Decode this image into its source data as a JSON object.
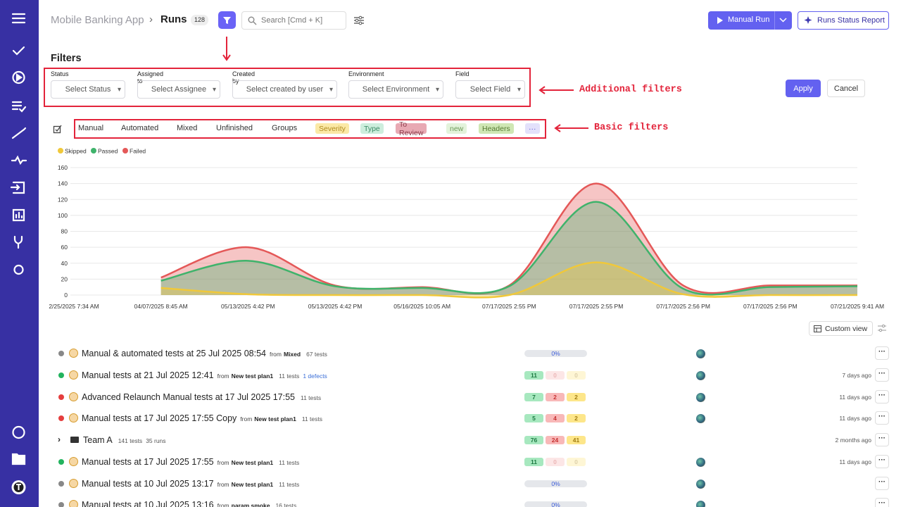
{
  "header": {
    "project": "Mobile Banking App",
    "separator": "›",
    "page": "Runs",
    "count": 128,
    "search_placeholder": "Search [Cmd + K]",
    "manual_run": "Manual Run",
    "status_report": "Runs Status Report"
  },
  "filters": {
    "title": "Filters",
    "fields": [
      {
        "label": "Status",
        "placeholder": "Select Status"
      },
      {
        "label": "Assigned to",
        "placeholder": "Select Assignee"
      },
      {
        "label": "Created by",
        "placeholder": "Select created by user"
      },
      {
        "label": "Environment",
        "placeholder": "Select Environment"
      },
      {
        "label": "Field",
        "placeholder": "Select Field"
      }
    ],
    "apply": "Apply",
    "cancel": "Cancel"
  },
  "basic_filters": {
    "tabs": [
      "Manual",
      "Automated",
      "Mixed",
      "Unfinished",
      "Groups"
    ],
    "tags": [
      {
        "label": "Severity",
        "color": "#fbe9a6",
        "text_color": "#b08a1e"
      },
      {
        "label": "Type",
        "color": "#cdeedd",
        "text_color": "#3a8a65"
      },
      {
        "label": "To Review",
        "color": "#e8a9b3",
        "text_color": "#8a3c4a"
      },
      {
        "label": "new",
        "color": "#e3f3db",
        "text_color": "#6c9a57"
      },
      {
        "label": "Headers",
        "color": "#cfe7b4",
        "text_color": "#557a33"
      },
      {
        "label": "···",
        "color": "#e3e1fb",
        "text_color": "#5a55d0"
      }
    ]
  },
  "annotations": {
    "additional": "Additional filters",
    "basic": "Basic filters"
  },
  "chart": {
    "type": "area",
    "categories": [
      "2/25/2025 7:34 AM",
      "04/07/2025 8:45 AM",
      "05/13/2025 4:42 PM",
      "05/13/2025 4:42 PM",
      "05/16/2025 10:05 AM",
      "07/17/2025 2:55 PM",
      "07/17/2025 2:55 PM",
      "07/17/2025 2:56 PM",
      "07/17/2025 2:56 PM",
      "07/21/2025 9:41 AM"
    ],
    "ylim": [
      0,
      160
    ],
    "yticks": [
      0,
      20,
      40,
      60,
      80,
      100,
      120,
      140,
      160
    ],
    "grid": true,
    "series": [
      {
        "name": "Skipped",
        "color": "#f0c83a",
        "values": [
          null,
          9,
          1,
          0,
          0,
          0,
          41,
          1,
          0,
          0
        ]
      },
      {
        "name": "Passed",
        "color": "#3fb36b",
        "values": [
          null,
          18,
          43,
          11,
          9,
          11,
          117,
          8,
          10,
          11
        ]
      },
      {
        "name": "Failed",
        "color": "#e45858",
        "values": [
          null,
          22,
          60,
          12,
          10,
          12,
          140,
          12,
          12,
          12
        ]
      }
    ]
  },
  "list": {
    "custom_view": "Custom view",
    "from_label": "from",
    "rows": [
      {
        "title": "Manual & automated tests at 25 Jul 2025 08:54",
        "source": "Mixed",
        "tests": "67 tests",
        "progress": "0%",
        "icon_color": "#888"
      },
      {
        "title": "Manual tests at 21 Jul 2025 12:41",
        "source": "New test plan1",
        "tests": "11 tests",
        "defects": "1 defects",
        "counts": [
          11,
          0,
          0
        ],
        "date": "7 days ago",
        "icon_color": "#22b35e"
      },
      {
        "title": "Advanced Relaunch Manual tests at 17 Jul 2025 17:55",
        "tests": "11 tests",
        "counts": [
          7,
          2,
          2
        ],
        "date": "11 days ago",
        "icon_color": "#e53e3e"
      },
      {
        "title": "Manual tests at 17 Jul 2025 17:55 Copy",
        "source": "New test plan1",
        "tests": "11 tests",
        "counts": [
          5,
          4,
          2
        ],
        "date": "11 days ago",
        "icon_color": "#e53e3e"
      },
      {
        "title": "Team A",
        "tests": "141 tests",
        "runs": "35 runs",
        "counts": [
          76,
          24,
          41
        ],
        "date": "2 months ago",
        "group": true
      },
      {
        "title": "Manual tests at 17 Jul 2025 17:55",
        "source": "New test plan1",
        "tests": "11 tests",
        "counts": [
          11,
          0,
          0
        ],
        "date": "11 days ago",
        "icon_color": "#22b35e"
      },
      {
        "title": "Manual tests at 10 Jul 2025 13:17",
        "source": "New test plan1",
        "tests": "11 tests",
        "progress": "0%",
        "icon_color": "#888"
      },
      {
        "title": "Manual tests at 10 Jul 2025 13:16",
        "source": "param smoke",
        "tests": "16 tests",
        "progress": "0%",
        "icon_color": "#888"
      }
    ]
  }
}
